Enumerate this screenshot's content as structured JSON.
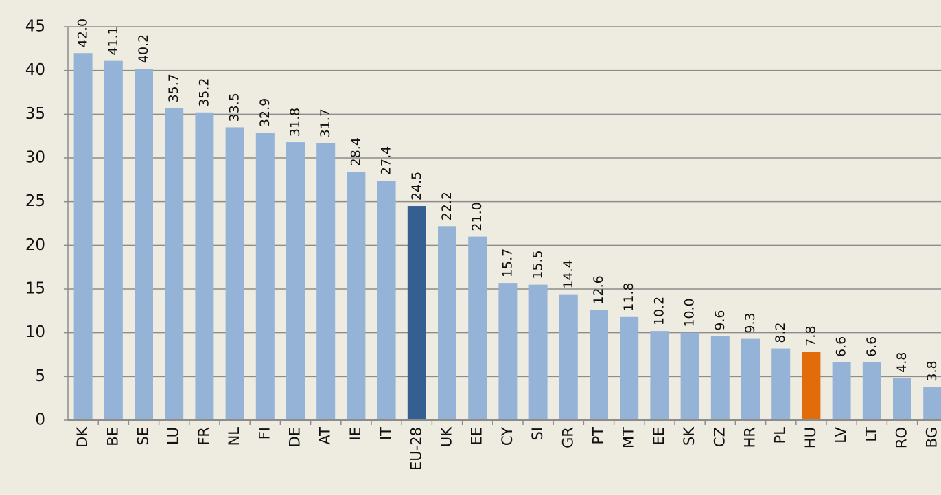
{
  "chart_data": {
    "type": "bar",
    "categories": [
      "DK",
      "BE",
      "SE",
      "LU",
      "FR",
      "NL",
      "FI",
      "DE",
      "AT",
      "IE",
      "IT",
      "EU-28",
      "UK",
      "EE",
      "CY",
      "SI",
      "GR",
      "PT",
      "MT",
      "EE",
      "SK",
      "CZ",
      "HR",
      "PL",
      "HU",
      "LV",
      "LT",
      "RO",
      "BG"
    ],
    "values": [
      42.0,
      41.1,
      40.2,
      35.7,
      35.2,
      33.5,
      32.9,
      31.8,
      31.7,
      28.4,
      27.4,
      24.5,
      22.2,
      21.0,
      15.7,
      15.5,
      14.4,
      12.6,
      11.8,
      10.2,
      10.0,
      9.6,
      9.3,
      8.2,
      7.8,
      6.6,
      6.6,
      4.8,
      3.8
    ],
    "value_labels": [
      "42.0",
      "41.1",
      "40.2",
      "35.7",
      "35.2",
      "33.5",
      "32.9",
      "31.8",
      "31.7",
      "28.4",
      "27.4",
      "24.5",
      "22.2",
      "21.0",
      "15.7",
      "15.5",
      "14.4",
      "12.6",
      "11.8",
      "10.2",
      "10.0",
      "9.6",
      "9.3",
      "8.2",
      "7.8",
      "6.6",
      "6.6",
      "4.8",
      "3.8"
    ],
    "colors": [
      "#95b3d7",
      "#95b3d7",
      "#95b3d7",
      "#95b3d7",
      "#95b3d7",
      "#95b3d7",
      "#95b3d7",
      "#95b3d7",
      "#95b3d7",
      "#95b3d7",
      "#95b3d7",
      "#365f91",
      "#95b3d7",
      "#95b3d7",
      "#95b3d7",
      "#95b3d7",
      "#95b3d7",
      "#95b3d7",
      "#95b3d7",
      "#95b3d7",
      "#95b3d7",
      "#95b3d7",
      "#95b3d7",
      "#95b3d7",
      "#e36c0a",
      "#95b3d7",
      "#95b3d7",
      "#95b3d7",
      "#95b3d7"
    ],
    "ylim": [
      0,
      45
    ],
    "yticks": [
      0,
      5,
      10,
      15,
      20,
      25,
      30,
      35,
      40,
      45
    ],
    "grid": true
  }
}
